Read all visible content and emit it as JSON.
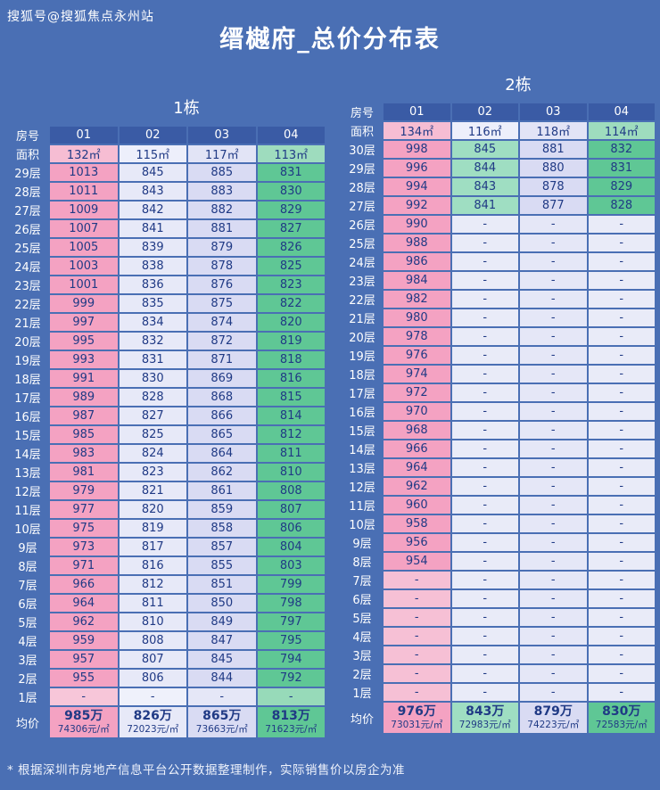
{
  "page": {
    "watermark": "搜狐号@搜狐焦点永州站",
    "title": "缙樾府_总价分布表",
    "footnote": "* 根据深圳市房地产信息平台公开数据整理制作，实际销售价以房企为准"
  },
  "colors": {
    "background": "#4a6fb4",
    "header_cell": "#3a5ba5",
    "value_text": "#203a85",
    "label_text": "#ffffff"
  },
  "chart_data": [
    {
      "type": "table",
      "name": "1栋",
      "room_label": "房号",
      "area_label": "面积",
      "avg_label": "均价",
      "rooms": [
        "01",
        "02",
        "03",
        "04"
      ],
      "areas": [
        "132㎡",
        "115㎡",
        "117㎡",
        "113㎡"
      ],
      "area_colors": [
        "#f6bdd3",
        "#edeffb",
        "#e2e4f6",
        "#9edcbe"
      ],
      "col_colors": [
        "#f4a2c2",
        "#e7e9f8",
        "#d9dbf3",
        "#5fc795"
      ],
      "col_colors_light": [
        "#f7c6d9",
        "#eff1fb",
        "#e5e7f7",
        "#97dab9"
      ],
      "floors": [
        "29层",
        "28层",
        "27层",
        "26层",
        "25层",
        "24层",
        "23层",
        "22层",
        "21层",
        "20层",
        "19层",
        "18层",
        "17层",
        "16层",
        "15层",
        "14层",
        "13层",
        "12层",
        "11层",
        "10层",
        "9层",
        "8层",
        "7层",
        "6层",
        "5层",
        "4层",
        "3层",
        "2层",
        "1层"
      ],
      "values": [
        [
          1013,
          845,
          885,
          831
        ],
        [
          1011,
          843,
          883,
          830
        ],
        [
          1009,
          842,
          882,
          829
        ],
        [
          1007,
          841,
          881,
          827
        ],
        [
          1005,
          839,
          879,
          826
        ],
        [
          1003,
          838,
          878,
          825
        ],
        [
          1001,
          836,
          876,
          823
        ],
        [
          999,
          835,
          875,
          822
        ],
        [
          997,
          834,
          874,
          820
        ],
        [
          995,
          832,
          872,
          819
        ],
        [
          993,
          831,
          871,
          818
        ],
        [
          991,
          830,
          869,
          816
        ],
        [
          989,
          828,
          868,
          815
        ],
        [
          987,
          827,
          866,
          814
        ],
        [
          985,
          825,
          865,
          812
        ],
        [
          983,
          824,
          864,
          811
        ],
        [
          981,
          823,
          862,
          810
        ],
        [
          979,
          821,
          861,
          808
        ],
        [
          977,
          820,
          859,
          807
        ],
        [
          975,
          819,
          858,
          806
        ],
        [
          973,
          817,
          857,
          804
        ],
        [
          971,
          816,
          855,
          803
        ],
        [
          966,
          812,
          851,
          799
        ],
        [
          964,
          811,
          850,
          798
        ],
        [
          962,
          810,
          849,
          797
        ],
        [
          959,
          808,
          847,
          795
        ],
        [
          957,
          807,
          845,
          794
        ],
        [
          955,
          806,
          844,
          792
        ],
        [
          "-",
          "-",
          "-",
          "-"
        ]
      ],
      "averages": [
        [
          "985万",
          "74306元/㎡"
        ],
        [
          "826万",
          "72023元/㎡"
        ],
        [
          "865万",
          "73663元/㎡"
        ],
        [
          "813万",
          "71623元/㎡"
        ]
      ]
    },
    {
      "type": "table",
      "name": "2栋",
      "room_label": "房号",
      "area_label": "面积",
      "avg_label": "均价",
      "rooms": [
        "01",
        "02",
        "03",
        "04"
      ],
      "areas": [
        "134㎡",
        "116㎡",
        "118㎡",
        "114㎡"
      ],
      "area_colors": [
        "#f6bdd3",
        "#edeffb",
        "#e2e4f6",
        "#9edcbe"
      ],
      "col_colors": [
        "#f4a2c2",
        "#9fdec2",
        "#d9dbf3",
        "#5fc795"
      ],
      "col_colors_light": [
        "#f6c0d5",
        "#e9ebf8",
        "#e5e7f7",
        "#e9ebf8"
      ],
      "floors": [
        "30层",
        "29层",
        "28层",
        "27层",
        "26层",
        "25层",
        "24层",
        "23层",
        "22层",
        "21层",
        "20层",
        "19层",
        "18层",
        "17层",
        "16层",
        "15层",
        "14层",
        "13层",
        "12层",
        "11层",
        "10层",
        "9层",
        "8层",
        "7层",
        "6层",
        "5层",
        "4层",
        "3层",
        "2层",
        "1层"
      ],
      "values": [
        [
          998,
          845,
          881,
          832
        ],
        [
          996,
          844,
          880,
          831
        ],
        [
          994,
          843,
          878,
          829
        ],
        [
          992,
          841,
          877,
          828
        ],
        [
          990,
          "-",
          "-",
          "-"
        ],
        [
          988,
          "-",
          "-",
          "-"
        ],
        [
          986,
          "-",
          "-",
          "-"
        ],
        [
          984,
          "-",
          "-",
          "-"
        ],
        [
          982,
          "-",
          "-",
          "-"
        ],
        [
          980,
          "-",
          "-",
          "-"
        ],
        [
          978,
          "-",
          "-",
          "-"
        ],
        [
          976,
          "-",
          "-",
          "-"
        ],
        [
          974,
          "-",
          "-",
          "-"
        ],
        [
          972,
          "-",
          "-",
          "-"
        ],
        [
          970,
          "-",
          "-",
          "-"
        ],
        [
          968,
          "-",
          "-",
          "-"
        ],
        [
          966,
          "-",
          "-",
          "-"
        ],
        [
          964,
          "-",
          "-",
          "-"
        ],
        [
          962,
          "-",
          "-",
          "-"
        ],
        [
          960,
          "-",
          "-",
          "-"
        ],
        [
          958,
          "-",
          "-",
          "-"
        ],
        [
          956,
          "-",
          "-",
          "-"
        ],
        [
          954,
          "-",
          "-",
          "-"
        ],
        [
          "-",
          "-",
          "-",
          "-"
        ],
        [
          "-",
          "-",
          "-",
          "-"
        ],
        [
          "-",
          "-",
          "-",
          "-"
        ],
        [
          "-",
          "-",
          "-",
          "-"
        ],
        [
          "-",
          "-",
          "-",
          "-"
        ],
        [
          "-",
          "-",
          "-",
          "-"
        ],
        [
          "-",
          "-",
          "-",
          "-"
        ]
      ],
      "averages": [
        [
          "976万",
          "73031元/㎡"
        ],
        [
          "843万",
          "72983元/㎡"
        ],
        [
          "879万",
          "74223元/㎡"
        ],
        [
          "830万",
          "72583元/㎡"
        ]
      ]
    }
  ]
}
